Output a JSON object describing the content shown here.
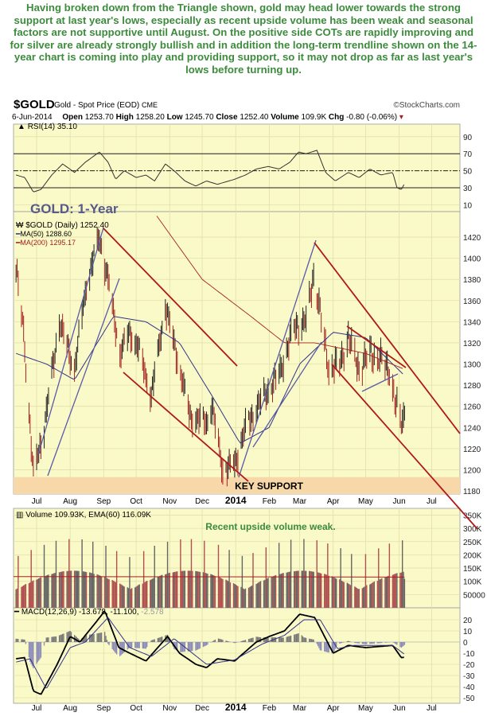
{
  "annotation_text": "Having broken down from the Triangle shown, gold may head lower towards the strong support at last year's lows, especially as recent upside volume has been weak and seasonal factors are not supportive until August. On the positive side COTs are rapidly improving and for silver are already strongly bullish and in addition the long-term trendline shown on the 14-year chart is coming into play and providing support, so it may not drop as far as last year's lows before turning up.",
  "header": {
    "symbol": "$GOLD",
    "name": "Gold - Spot Price (EOD)",
    "exchange": "CME",
    "source": "©StockCharts.com",
    "date": "6-Jun-2014",
    "open_label": "Open",
    "open": "1253.70",
    "high_label": "High",
    "high": "1258.20",
    "low_label": "Low",
    "low": "1245.70",
    "close_label": "Close",
    "close": "1252.40",
    "volume_label": "Volume",
    "volume": "109.9K",
    "chg_label": "Chg",
    "chg": "-0.80 (-0.06%)"
  },
  "colors": {
    "panel": "#fafac8",
    "grid": "#e3dfa8",
    "up": "#222222",
    "down": "#a32020",
    "ma50": "#33338a",
    "ma200": "#a32020",
    "support": "#f8d7a8",
    "title": "#5a5a8a",
    "note": "#3d8b3d"
  },
  "chart_data": [
    {
      "type": "line",
      "panel": "RSI",
      "legend": "RSI(14) 35.10",
      "yticks": [
        90,
        70,
        50,
        30,
        10
      ],
      "levels": [
        70,
        50,
        30
      ],
      "series": [
        {
          "name": "RSI(14)",
          "points": [
            [
              "2013-06-12",
              45
            ],
            [
              "2013-06-20",
              42
            ],
            [
              "2013-06-28",
              25
            ],
            [
              "2013-07-05",
              28
            ],
            [
              "2013-07-15",
              45
            ],
            [
              "2013-07-25",
              58
            ],
            [
              "2013-08-05",
              48
            ],
            [
              "2013-08-15",
              60
            ],
            [
              "2013-08-28",
              72
            ],
            [
              "2013-09-05",
              60
            ],
            [
              "2013-09-12",
              40
            ],
            [
              "2013-09-20",
              50
            ],
            [
              "2013-10-01",
              42
            ],
            [
              "2013-10-10",
              45
            ],
            [
              "2013-10-18",
              38
            ],
            [
              "2013-10-28",
              58
            ],
            [
              "2013-11-05",
              50
            ],
            [
              "2013-11-15",
              38
            ],
            [
              "2013-11-25",
              32
            ],
            [
              "2013-12-05",
              38
            ],
            [
              "2013-12-15",
              34
            ],
            [
              "2013-12-31",
              40
            ],
            [
              "2014-01-10",
              45
            ],
            [
              "2014-01-20",
              52
            ],
            [
              "2014-01-31",
              55
            ],
            [
              "2014-02-10",
              52
            ],
            [
              "2014-02-20",
              60
            ],
            [
              "2014-02-28",
              72
            ],
            [
              "2014-03-07",
              70
            ],
            [
              "2014-03-17",
              74
            ],
            [
              "2014-03-25",
              48
            ],
            [
              "2014-04-03",
              38
            ],
            [
              "2014-04-15",
              48
            ],
            [
              "2014-04-25",
              42
            ],
            [
              "2014-05-05",
              52
            ],
            [
              "2014-05-15",
              45
            ],
            [
              "2014-05-26",
              48
            ],
            [
              "2014-05-30",
              30
            ],
            [
              "2014-06-03",
              28
            ],
            [
              "2014-06-06",
              35
            ]
          ]
        }
      ]
    },
    {
      "type": "candlestick",
      "panel": "Price",
      "title": "GOLD: 1-Year",
      "legend": [
        "$GOLD (Daily) 1252.40",
        "MA(50) 1288.60",
        "MA(200) 1295.17"
      ],
      "yticks": [
        1420,
        1400,
        1380,
        1360,
        1340,
        1320,
        1300,
        1280,
        1260,
        1240,
        1220,
        1200,
        1180
      ],
      "ylim": [
        1180,
        1447
      ],
      "annotation": "KEY SUPPORT",
      "support_range": [
        1180,
        1193
      ],
      "close_points": [
        [
          "2013-06-12",
          1390
        ],
        [
          "2013-06-19",
          1330
        ],
        [
          "2013-06-28",
          1195
        ],
        [
          "2013-07-08",
          1240
        ],
        [
          "2013-07-22",
          1340
        ],
        [
          "2013-08-05",
          1295
        ],
        [
          "2013-08-16",
          1375
        ],
        [
          "2013-08-28",
          1420
        ],
        [
          "2013-09-05",
          1380
        ],
        [
          "2013-09-16",
          1310
        ],
        [
          "2013-09-25",
          1330
        ],
        [
          "2013-10-03",
          1315
        ],
        [
          "2013-10-15",
          1270
        ],
        [
          "2013-10-28",
          1355
        ],
        [
          "2013-11-06",
          1315
        ],
        [
          "2013-11-20",
          1250
        ],
        [
          "2013-12-05",
          1245
        ],
        [
          "2013-12-10",
          1260
        ],
        [
          "2013-12-20",
          1200
        ],
        [
          "2013-12-31",
          1205
        ],
        [
          "2014-01-10",
          1240
        ],
        [
          "2014-01-24",
          1265
        ],
        [
          "2014-02-10",
          1290
        ],
        [
          "2014-02-24",
          1335
        ],
        [
          "2014-03-07",
          1340
        ],
        [
          "2014-03-14",
          1385
        ],
        [
          "2014-03-19",
          1355
        ],
        [
          "2014-03-28",
          1295
        ],
        [
          "2014-04-07",
          1300
        ],
        [
          "2014-04-15",
          1325
        ],
        [
          "2014-04-25",
          1295
        ],
        [
          "2014-05-05",
          1310
        ],
        [
          "2014-05-14",
          1305
        ],
        [
          "2014-05-23",
          1295
        ],
        [
          "2014-05-29",
          1260
        ],
        [
          "2014-06-03",
          1245
        ],
        [
          "2014-06-06",
          1252
        ]
      ],
      "ma50_points": [
        [
          "2013-06-12",
          1310
        ],
        [
          "2013-07-10",
          1300
        ],
        [
          "2013-08-05",
          1285
        ],
        [
          "2013-09-10",
          1345
        ],
        [
          "2013-10-10",
          1340
        ],
        [
          "2013-11-10",
          1320
        ],
        [
          "2013-12-10",
          1270
        ],
        [
          "2014-01-05",
          1225
        ],
        [
          "2014-02-01",
          1240
        ],
        [
          "2014-03-01",
          1300
        ],
        [
          "2014-04-01",
          1330
        ],
        [
          "2014-05-01",
          1325
        ],
        [
          "2014-06-06",
          1289
        ]
      ],
      "ma200_points": [
        [
          "2013-10-20",
          1440
        ],
        [
          "2013-12-01",
          1380
        ],
        [
          "2014-01-15",
          1345
        ],
        [
          "2014-02-15",
          1320
        ],
        [
          "2014-03-15",
          1320
        ],
        [
          "2014-05-01",
          1310
        ],
        [
          "2014-06-06",
          1295
        ]
      ]
    },
    {
      "type": "bar",
      "panel": "Volume",
      "legend": "Volume 109.93K, EMA(60) 116.09K",
      "note": "Recent upside volume weak.",
      "yticks": [
        "350K",
        "300K",
        "250K",
        "200K",
        "150K",
        "100K",
        "50000"
      ],
      "last_volume": 109930,
      "last_ema": 116090
    },
    {
      "type": "line",
      "panel": "MACD",
      "legend_macd": "MACD(12,26,9) -13.678, -11.100,",
      "legend_hist": "-2.578",
      "yticks": [
        20,
        10,
        0,
        -10,
        -20,
        -30,
        -40,
        -50
      ],
      "macd_points": [
        [
          "2013-06-12",
          -15
        ],
        [
          "2013-06-20",
          -14
        ],
        [
          "2013-06-28",
          -44
        ],
        [
          "2013-07-05",
          -47
        ],
        [
          "2013-07-20",
          -20
        ],
        [
          "2013-08-01",
          5
        ],
        [
          "2013-08-10",
          0
        ],
        [
          "2013-08-25",
          18
        ],
        [
          "2013-09-02",
          28
        ],
        [
          "2013-09-15",
          -5
        ],
        [
          "2013-09-25",
          -10
        ],
        [
          "2013-10-10",
          -17
        ],
        [
          "2013-10-30",
          5
        ],
        [
          "2013-11-10",
          -10
        ],
        [
          "2013-11-25",
          -20
        ],
        [
          "2013-12-05",
          -23
        ],
        [
          "2013-12-15",
          -15
        ],
        [
          "2013-12-31",
          -17
        ],
        [
          "2014-01-20",
          0
        ],
        [
          "2014-02-01",
          5
        ],
        [
          "2014-02-15",
          10
        ],
        [
          "2014-03-01",
          25
        ],
        [
          "2014-03-15",
          22
        ],
        [
          "2014-04-01",
          -10
        ],
        [
          "2014-04-15",
          -3
        ],
        [
          "2014-05-01",
          -5
        ],
        [
          "2014-05-26",
          -3
        ],
        [
          "2014-06-03",
          -14
        ],
        [
          "2014-06-06",
          -13.678
        ]
      ],
      "signal_points": [
        [
          "2013-06-12",
          -18
        ],
        [
          "2013-06-25",
          -15
        ],
        [
          "2013-07-10",
          -42
        ],
        [
          "2013-08-01",
          -5
        ],
        [
          "2013-08-15",
          0
        ],
        [
          "2013-09-05",
          22
        ],
        [
          "2013-09-25",
          -5
        ],
        [
          "2013-10-15",
          -13
        ],
        [
          "2013-11-05",
          3
        ],
        [
          "2013-12-05",
          -20
        ],
        [
          "2013-12-31",
          -16
        ],
        [
          "2014-01-25",
          -2
        ],
        [
          "2014-02-15",
          6
        ],
        [
          "2014-03-05",
          20
        ],
        [
          "2014-03-20",
          20
        ],
        [
          "2014-04-05",
          -6
        ],
        [
          "2014-04-20",
          -3
        ],
        [
          "2014-05-26",
          -3
        ],
        [
          "2014-06-06",
          -11.1
        ]
      ]
    }
  ],
  "x_axis": {
    "labels": [
      [
        "Jul",
        "2013-07-01"
      ],
      [
        "Aug",
        "2013-08-01"
      ],
      [
        "Sep",
        "2013-09-01"
      ],
      [
        "Oct",
        "2013-10-01"
      ],
      [
        "Nov",
        "2013-11-01"
      ],
      [
        "Dec",
        "2013-12-01"
      ],
      [
        "2014",
        "2014-01-01"
      ],
      [
        "Feb",
        "2014-02-01"
      ],
      [
        "Mar",
        "2014-03-01"
      ],
      [
        "Apr",
        "2014-04-01"
      ],
      [
        "May",
        "2014-05-01"
      ],
      [
        "Jun",
        "2014-06-01"
      ],
      [
        "Jul",
        "2014-07-01"
      ]
    ]
  }
}
